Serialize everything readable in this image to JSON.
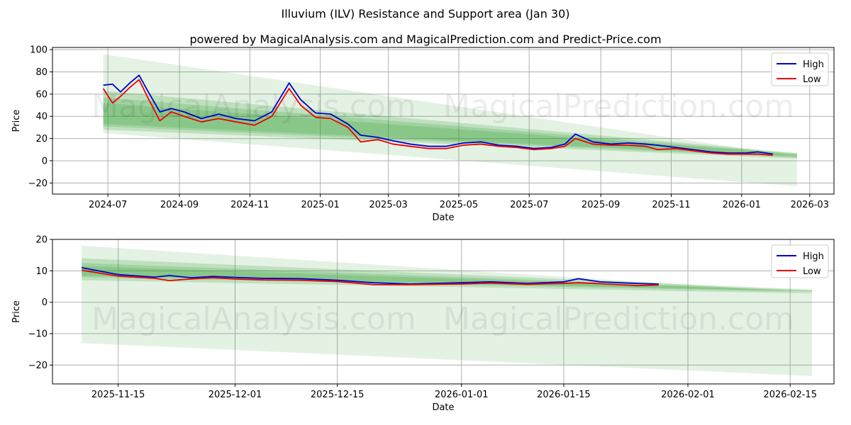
{
  "title": "Illuvium (ILV) Resistance and Support area (Jan 30)",
  "subtitle": "powered by MagicalAnalysis.com and MagicalPrediction.com and Predict-Price.com",
  "watermarks": [
    "MagicalAnalysis.com",
    "MagicalPrediction.com"
  ],
  "colors": {
    "high": "#0000cc",
    "low": "#ee0000",
    "band": "#2e9b2e",
    "grid": "#b0b0b0"
  },
  "chart_data": [
    {
      "type": "line",
      "title": "Illuvium (ILV) Resistance and Support area (Jan 30)",
      "xlabel": "Date",
      "ylabel": "Price",
      "ylim": [
        -30,
        102
      ],
      "yticks": [
        -20,
        0,
        20,
        40,
        60,
        80,
        100
      ],
      "xtick_labels": [
        "2024-07",
        "2024-09",
        "2024-11",
        "2025-01",
        "2025-03",
        "2025-05",
        "2025-07",
        "2025-09",
        "2025-11",
        "2026-01",
        "2026-03"
      ],
      "grid": true,
      "legend": {
        "position": "upper right",
        "entries": [
          "High",
          "Low"
        ]
      },
      "x": [
        "2024-06-27",
        "2024-07-05",
        "2024-07-12",
        "2024-07-20",
        "2024-07-28",
        "2024-08-05",
        "2024-08-15",
        "2024-08-25",
        "2024-09-05",
        "2024-09-20",
        "2024-10-05",
        "2024-10-20",
        "2024-11-05",
        "2024-11-20",
        "2024-12-05",
        "2024-12-15",
        "2024-12-28",
        "2025-01-10",
        "2025-01-25",
        "2025-02-05",
        "2025-02-20",
        "2025-03-05",
        "2025-03-20",
        "2025-04-05",
        "2025-04-20",
        "2025-05-05",
        "2025-05-20",
        "2025-06-05",
        "2025-06-20",
        "2025-07-05",
        "2025-07-20",
        "2025-08-01",
        "2025-08-10",
        "2025-08-25",
        "2025-09-10",
        "2025-09-25",
        "2025-10-10",
        "2025-10-20",
        "2025-11-05",
        "2025-11-20",
        "2025-12-05",
        "2025-12-20",
        "2026-01-05",
        "2026-01-15",
        "2026-01-28"
      ],
      "series": [
        {
          "name": "High",
          "values": [
            68,
            69,
            62,
            70,
            77,
            62,
            44,
            47,
            44,
            38,
            42,
            38,
            36,
            44,
            70,
            55,
            43,
            42,
            33,
            23,
            21,
            18,
            15,
            13,
            13,
            16,
            17,
            14,
            13,
            11,
            12,
            15,
            24,
            17,
            15,
            16,
            15,
            14,
            12,
            10,
            8,
            7,
            7,
            8,
            6
          ]
        },
        {
          "name": "Low",
          "values": [
            65,
            52,
            58,
            66,
            73,
            56,
            36,
            44,
            40,
            35,
            38,
            35,
            32,
            40,
            65,
            50,
            39,
            38,
            30,
            17,
            19,
            15,
            13,
            11,
            11,
            14,
            15,
            13,
            12,
            10,
            11,
            13,
            20,
            15,
            14,
            14,
            13,
            10,
            11,
            9,
            7,
            6,
            6,
            6,
            5
          ]
        }
      ],
      "bands": {
        "start_date": "2024-06-27",
        "end_date": "2026-02-18",
        "layers": [
          {
            "top": [
              96,
              4
            ],
            "bottom": [
              25,
              -23
            ]
          },
          {
            "top": [
              63,
              7
            ],
            "bottom": [
              28,
              2
            ]
          },
          {
            "top": [
              57,
              6.5
            ],
            "bottom": [
              31,
              3
            ]
          },
          {
            "top": [
              52,
              6
            ],
            "bottom": [
              33,
              4
            ]
          }
        ]
      }
    },
    {
      "type": "line",
      "xlabel": "Date",
      "ylabel": "Price",
      "ylim": [
        -26,
        20
      ],
      "yticks": [
        -20,
        -10,
        0,
        10,
        20
      ],
      "xtick_labels": [
        "2025-11-15",
        "2025-12-01",
        "2025-12-15",
        "2026-01-01",
        "2026-01-15",
        "2026-02-01",
        "2026-02-15"
      ],
      "grid": true,
      "legend": {
        "position": "upper right",
        "entries": [
          "High",
          "Low"
        ]
      },
      "x": [
        "2025-11-10",
        "2025-11-15",
        "2025-11-20",
        "2025-11-22",
        "2025-11-25",
        "2025-11-28",
        "2025-12-01",
        "2025-12-05",
        "2025-12-10",
        "2025-12-15",
        "2025-12-20",
        "2025-12-25",
        "2026-01-01",
        "2026-01-05",
        "2026-01-10",
        "2026-01-13",
        "2026-01-15",
        "2026-01-17",
        "2026-01-20",
        "2026-01-25",
        "2026-01-28"
      ],
      "series": [
        {
          "name": "High",
          "values": [
            11.0,
            8.8,
            8.0,
            8.5,
            7.8,
            8.2,
            7.9,
            7.6,
            7.5,
            7.0,
            6.2,
            5.8,
            6.2,
            6.5,
            6.0,
            6.3,
            6.5,
            7.5,
            6.5,
            6.0,
            5.8
          ]
        },
        {
          "name": "Low",
          "values": [
            10.2,
            8.3,
            7.6,
            6.9,
            7.4,
            7.8,
            7.4,
            7.1,
            7.0,
            6.6,
            5.6,
            5.6,
            5.8,
            6.1,
            5.7,
            5.9,
            6.0,
            6.2,
            5.9,
            5.3,
            5.5
          ]
        }
      ],
      "bands": {
        "start_date": "2025-11-10",
        "end_date": "2026-02-18",
        "layers": [
          {
            "top": [
              18,
              3.0
            ],
            "bottom": [
              -13,
              -23.5
            ]
          },
          {
            "top": [
              14,
              4.0
            ],
            "bottom": [
              7,
              2.8
            ]
          },
          {
            "top": [
              12.5,
              3.8
            ],
            "bottom": [
              8,
              3.3
            ]
          },
          {
            "top": [
              11.5,
              3.6
            ],
            "bottom": [
              8.5,
              3.5
            ]
          }
        ]
      }
    }
  ]
}
